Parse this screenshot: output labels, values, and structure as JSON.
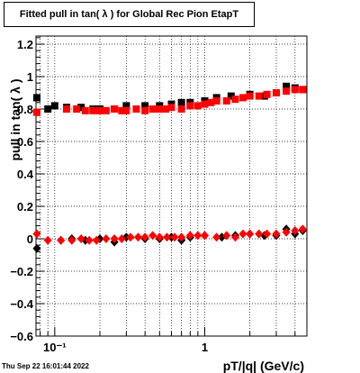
{
  "chart_data": {
    "type": "scatter",
    "title": "Fitted pull in tan( λ ) for Global Rec Pion EtapT",
    "xlabel": "pT/|q| (GeV/c)",
    "ylabel": "pull in tan( λ )",
    "xscale": "log",
    "xlim": [
      0.075,
      4.8
    ],
    "ylim": [
      -0.6,
      1.25
    ],
    "y_ticks": [
      -0.6,
      -0.4,
      -0.2,
      0,
      0.2,
      0.4,
      0.6,
      0.8,
      1,
      1.2
    ],
    "y_tick_labels": [
      "−0.6",
      "−0.4",
      "−0.2",
      "0",
      "0.2",
      "0.4",
      "0.6",
      "0.8",
      "1",
      "1.2"
    ],
    "x_major_ticks": [
      0.1,
      1
    ],
    "x_tick_labels": [
      "10⁻¹",
      "1"
    ],
    "grid": true,
    "series": [
      {
        "role": "black-width",
        "color": "#000000",
        "marker": "square",
        "x": [
          0.076,
          0.09,
          0.1,
          0.12,
          0.15,
          0.18,
          0.2,
          0.25,
          0.3,
          0.35,
          0.4,
          0.5,
          0.6,
          0.7,
          0.8,
          1.0,
          1.2,
          1.5,
          2.0,
          2.5,
          3.0,
          3.5,
          4.0,
          4.5
        ],
        "y": [
          0.87,
          0.8,
          0.82,
          0.81,
          0.81,
          0.8,
          0.8,
          0.8,
          0.82,
          0.8,
          0.82,
          0.82,
          0.83,
          0.84,
          0.84,
          0.85,
          0.87,
          0.88,
          0.89,
          0.88,
          0.9,
          0.94,
          0.93,
          0.92
        ]
      },
      {
        "role": "red-width",
        "color": "#ff0000",
        "marker": "square",
        "x": [
          0.076,
          0.12,
          0.14,
          0.16,
          0.18,
          0.2,
          0.22,
          0.25,
          0.28,
          0.3,
          0.35,
          0.4,
          0.45,
          0.5,
          0.55,
          0.6,
          0.7,
          0.8,
          0.9,
          1.0,
          1.1,
          1.2,
          1.4,
          1.6,
          1.8,
          2.0,
          2.3,
          2.6,
          3.0,
          3.5,
          4.0,
          4.5
        ],
        "y": [
          0.78,
          0.8,
          0.8,
          0.79,
          0.79,
          0.79,
          0.79,
          0.8,
          0.79,
          0.79,
          0.8,
          0.79,
          0.8,
          0.8,
          0.8,
          0.81,
          0.8,
          0.82,
          0.82,
          0.83,
          0.84,
          0.85,
          0.85,
          0.86,
          0.87,
          0.88,
          0.88,
          0.89,
          0.9,
          0.91,
          0.92,
          0.92
        ]
      },
      {
        "role": "black-mean",
        "color": "#000000",
        "marker": "diamond",
        "x": [
          0.076,
          0.11,
          0.13,
          0.16,
          0.2,
          0.25,
          0.3,
          0.4,
          0.5,
          0.6,
          0.7,
          0.8,
          1.0,
          1.3,
          1.6,
          2.0,
          2.5,
          3.0,
          3.5,
          4.0,
          4.5
        ],
        "y": [
          -0.06,
          -0.01,
          0.0,
          -0.01,
          0.0,
          -0.02,
          0.01,
          0.0,
          0.0,
          0.01,
          -0.01,
          0.01,
          0.02,
          0.01,
          0.02,
          0.03,
          0.02,
          0.02,
          0.06,
          0.03,
          0.05
        ]
      },
      {
        "role": "red-mean",
        "color": "#ff0000",
        "marker": "diamond",
        "x": [
          0.076,
          0.09,
          0.11,
          0.13,
          0.15,
          0.17,
          0.19,
          0.22,
          0.25,
          0.28,
          0.32,
          0.36,
          0.4,
          0.45,
          0.5,
          0.56,
          0.63,
          0.7,
          0.8,
          0.9,
          1.0,
          1.2,
          1.4,
          1.6,
          1.8,
          2.0,
          2.3,
          2.6,
          3.0,
          3.5,
          4.0,
          4.5
        ],
        "y": [
          0.03,
          -0.01,
          -0.01,
          -0.01,
          0.0,
          -0.01,
          -0.01,
          0.0,
          0.0,
          0.0,
          0.01,
          0.01,
          0.01,
          0.02,
          0.01,
          0.01,
          0.01,
          0.01,
          0.02,
          0.02,
          0.02,
          0.01,
          0.02,
          0.01,
          0.03,
          0.03,
          0.03,
          0.03,
          0.03,
          0.04,
          0.05,
          0.06
        ]
      }
    ]
  },
  "footer": {
    "timestamp": "Thu Sep 22 16:01:44 2022"
  }
}
